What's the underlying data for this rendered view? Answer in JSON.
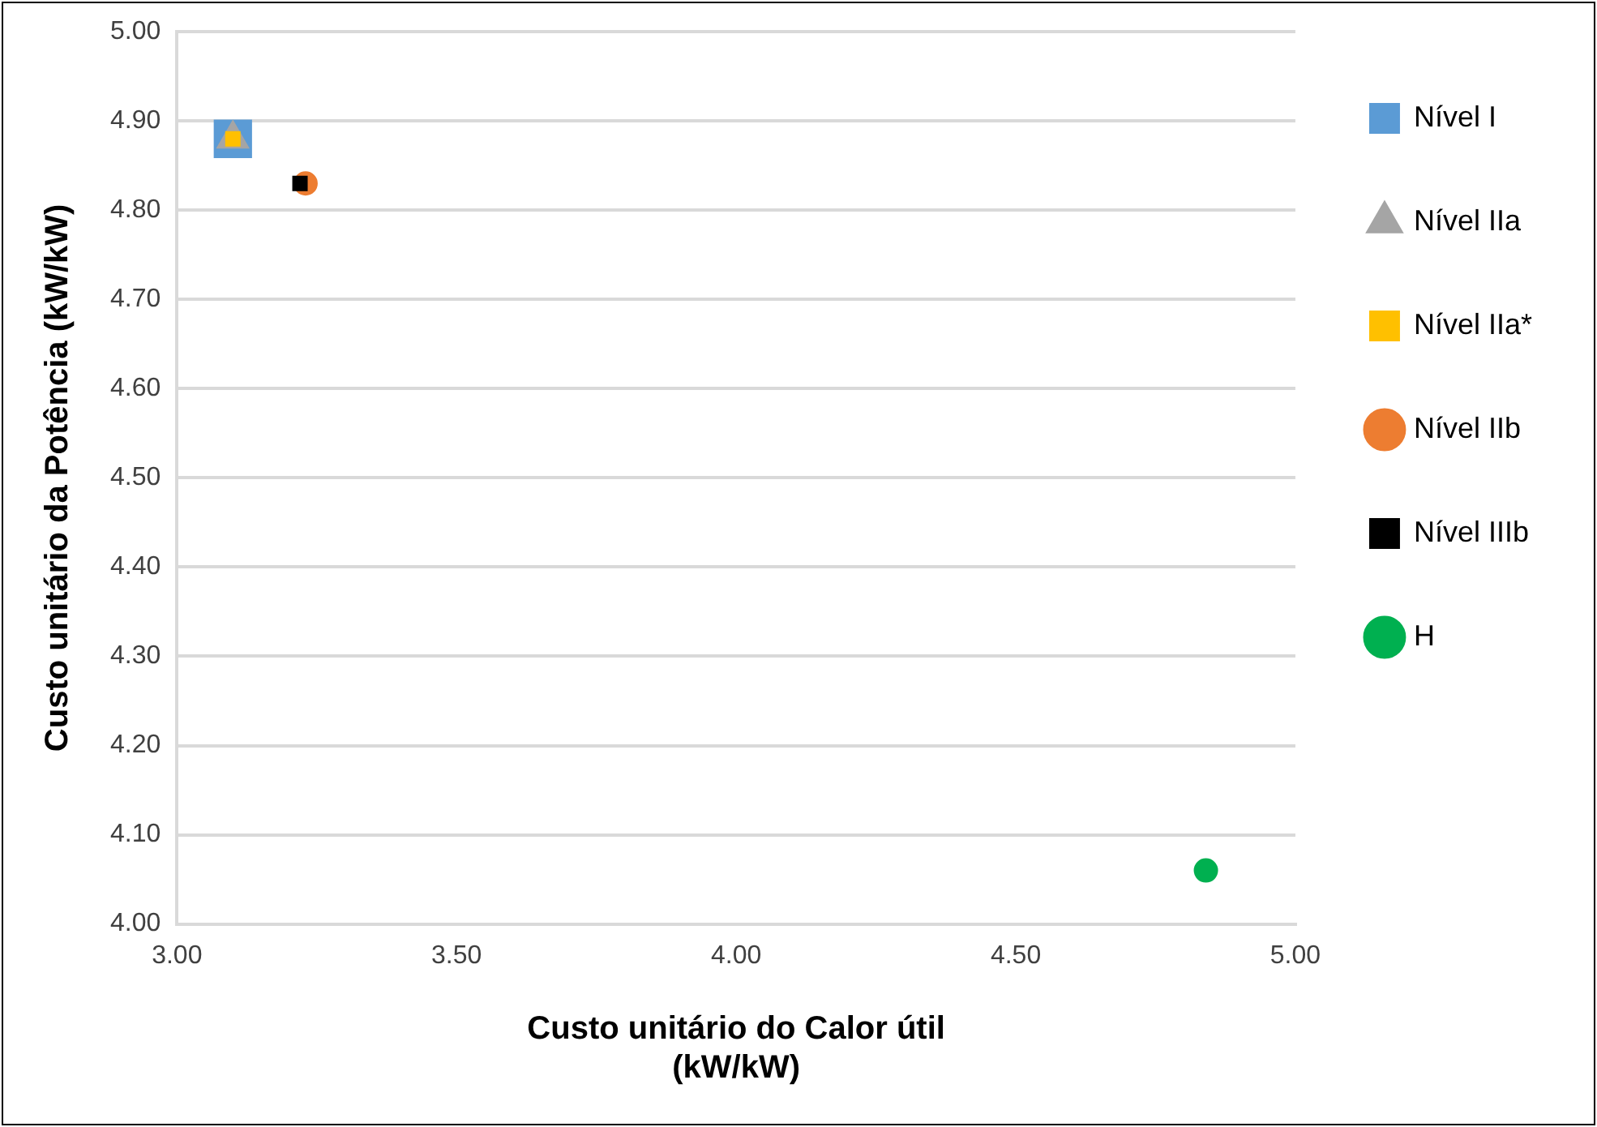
{
  "chart_data": {
    "type": "scatter",
    "xlabel": "Custo unitário do Calor útil\n(kW/kW)",
    "ylabel": "Custo unitário da Potência (kW/kW)",
    "xlim": [
      3.0,
      5.0
    ],
    "xticks": [
      {
        "value": 3,
        "label": "3.00"
      },
      {
        "value": 3.5,
        "label": "3.50"
      },
      {
        "value": 4,
        "label": "4.00"
      },
      {
        "value": 4.5,
        "label": "4.50"
      },
      {
        "value": 5,
        "label": "5.00"
      }
    ],
    "ylim": [
      4.0,
      5.0
    ],
    "yticks": [
      {
        "value": 4,
        "label": "4.00"
      },
      {
        "value": 4.1,
        "label": "4.10"
      },
      {
        "value": 4.2,
        "label": "4.20"
      },
      {
        "value": 4.3,
        "label": "4.30"
      },
      {
        "value": 4.4,
        "label": "4.40"
      },
      {
        "value": 4.5,
        "label": "4.50"
      },
      {
        "value": 4.6,
        "label": "4.60"
      },
      {
        "value": 4.7,
        "label": "4.70"
      },
      {
        "value": 4.8,
        "label": "4.80"
      },
      {
        "value": 4.9,
        "label": "4.90"
      },
      {
        "value": 5,
        "label": "5.00"
      }
    ],
    "grid": "y",
    "legend": "right",
    "series": [
      {
        "name": "Nível I",
        "color": "#5b9bd5",
        "marker": "square",
        "x": [
          3.1
        ],
        "values": [
          4.88
        ]
      },
      {
        "name": "Nível IIa",
        "color": "#a5a5a5",
        "marker": "triangle",
        "x": [
          3.1
        ],
        "values": [
          4.88
        ]
      },
      {
        "name": "Nível IIa*",
        "color": "#ffc000",
        "marker": "square",
        "x": [
          3.1
        ],
        "values": [
          4.88
        ]
      },
      {
        "name": "Nível IIb",
        "color": "#ed7d31",
        "marker": "circle",
        "x": [
          3.23
        ],
        "values": [
          4.83
        ]
      },
      {
        "name": "Nível IIIb",
        "color": "#000000",
        "marker": "square",
        "x": [
          3.22
        ],
        "values": [
          4.83
        ]
      },
      {
        "name": "H",
        "color": "#00b050",
        "marker": "circle",
        "x": [
          4.84
        ],
        "values": [
          4.06
        ]
      }
    ]
  }
}
